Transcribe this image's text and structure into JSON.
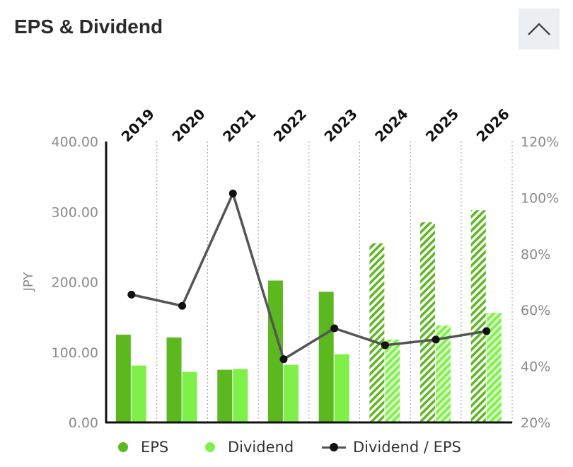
{
  "header": {
    "title": "EPS & Dividend"
  },
  "chart_data": {
    "type": "bar",
    "categories": [
      "2019",
      "2020",
      "2021",
      "2022",
      "2023",
      "2024",
      "2025",
      "2026"
    ],
    "ylabel": "JPY",
    "ylim": [
      0,
      400
    ],
    "y_ticks": [
      "400.00",
      "300.00",
      "200.00",
      "100.00",
      "0.00"
    ],
    "y2lim": [
      20,
      120
    ],
    "y2_ticks": [
      "120%",
      "100%",
      "80%",
      "60%",
      "40%",
      "20%"
    ],
    "forecast_from": "2024",
    "series": [
      {
        "name": "EPS",
        "type": "bar",
        "axis": "left",
        "color": "#5cb81f",
        "values": [
          125,
          121,
          75,
          202,
          186,
          255,
          285,
          302
        ]
      },
      {
        "name": "Dividend",
        "type": "bar",
        "axis": "left",
        "color": "#7ff04a",
        "values": [
          81,
          72,
          76,
          82,
          97,
          118,
          138,
          156
        ]
      },
      {
        "name": "Dividend / EPS",
        "type": "line",
        "axis": "right",
        "color": "#555555",
        "marker_color": "#111111",
        "values": [
          65.5,
          61.5,
          101.5,
          42.5,
          53.5,
          47.5,
          49.5,
          52.5
        ]
      }
    ],
    "legend": "bottom",
    "grid": "vertical dotted"
  }
}
